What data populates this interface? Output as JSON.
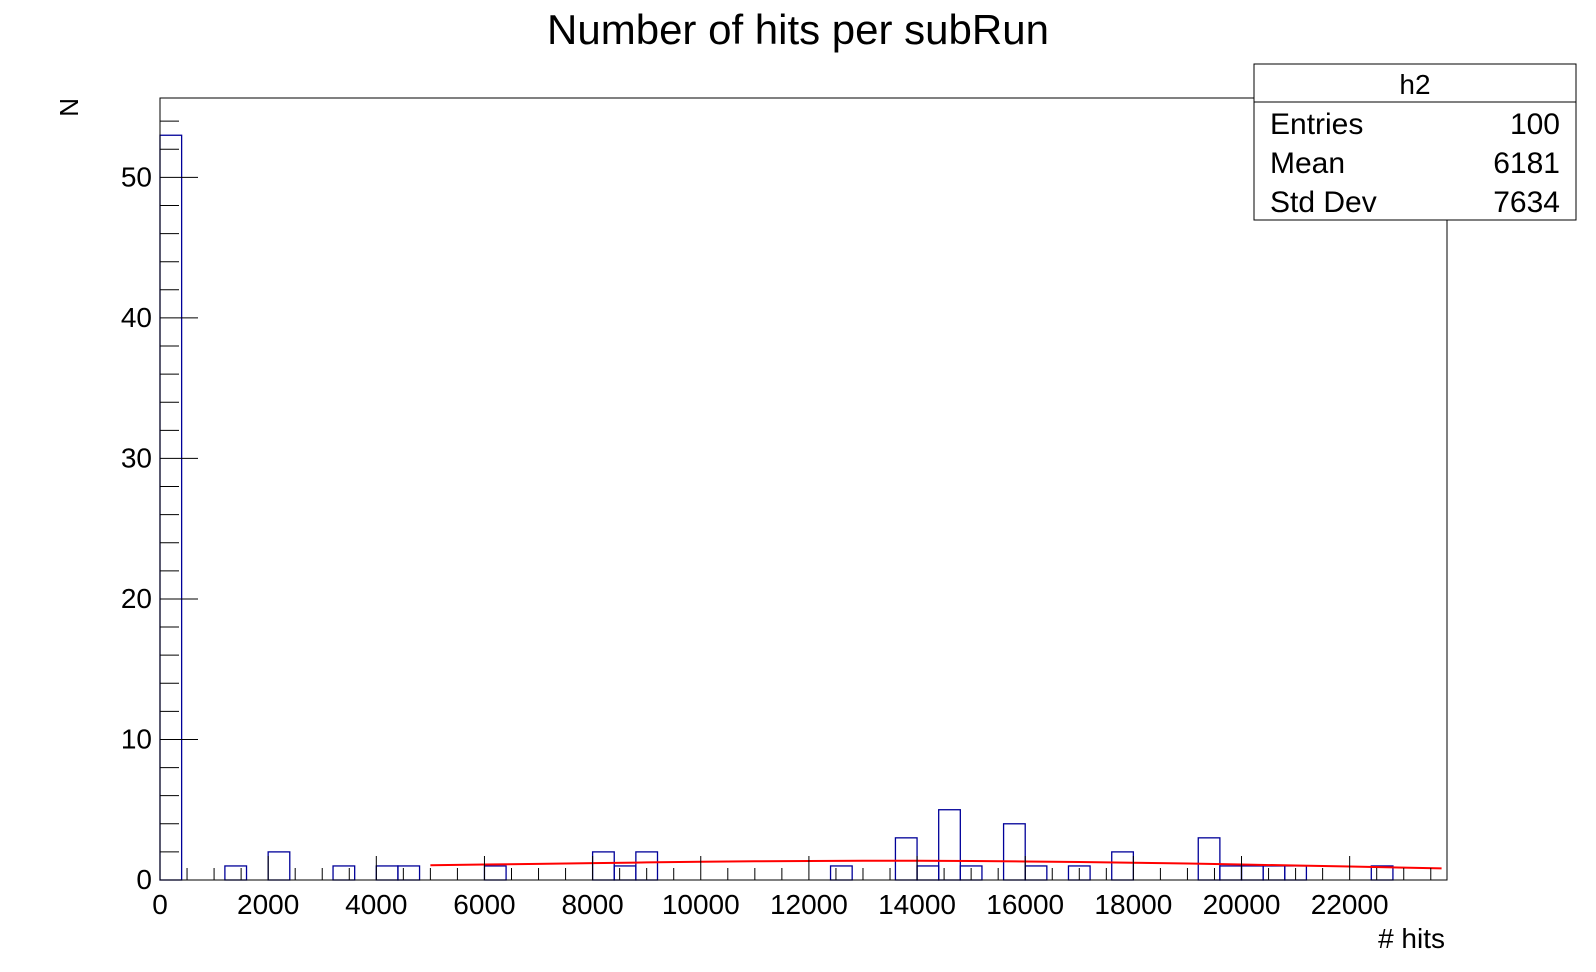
{
  "chart_data": {
    "type": "bar",
    "title": "Number of hits per subRun",
    "xlabel": "# hits",
    "ylabel": "N",
    "xlim": [
      0,
      23800
    ],
    "ylim": [
      0,
      55.65
    ],
    "x_ticks": [
      0,
      2000,
      4000,
      6000,
      8000,
      10000,
      12000,
      14000,
      16000,
      18000,
      20000,
      22000
    ],
    "y_ticks": [
      0,
      10,
      20,
      30,
      40,
      50
    ],
    "bin_width": 400,
    "histogram": {
      "name": "h2",
      "color": "#000099",
      "bin_edges_start": 0,
      "counts": [
        53,
        0,
        0,
        1,
        0,
        2,
        0,
        0,
        1,
        0,
        1,
        1,
        0,
        0,
        0,
        1,
        0,
        0,
        0,
        0,
        2,
        1,
        2,
        0,
        0,
        0,
        0,
        0,
        0,
        0,
        0,
        1,
        0,
        0,
        3,
        1,
        5,
        1,
        0,
        4,
        1,
        0,
        1,
        0,
        2,
        0,
        0,
        0,
        3,
        1,
        1,
        1,
        1,
        0,
        0,
        0,
        1,
        0,
        0,
        0
      ]
    },
    "fit": {
      "color": "#ff0000",
      "x": [
        5000,
        6000,
        7000,
        8000,
        9000,
        10000,
        11000,
        12000,
        13000,
        14000,
        15000,
        16000,
        17000,
        18000,
        19000,
        20000,
        21000,
        22000,
        23000,
        23700
      ],
      "y": [
        1.05,
        1.1,
        1.15,
        1.2,
        1.25,
        1.3,
        1.33,
        1.35,
        1.37,
        1.37,
        1.35,
        1.32,
        1.28,
        1.23,
        1.17,
        1.1,
        1.03,
        0.96,
        0.88,
        0.83
      ]
    }
  },
  "stats_box": {
    "title": "h2",
    "rows": [
      {
        "label": "Entries",
        "value": "100"
      },
      {
        "label": "Mean",
        "value": "6181"
      },
      {
        "label": "Std Dev",
        "value": "7634"
      }
    ]
  }
}
